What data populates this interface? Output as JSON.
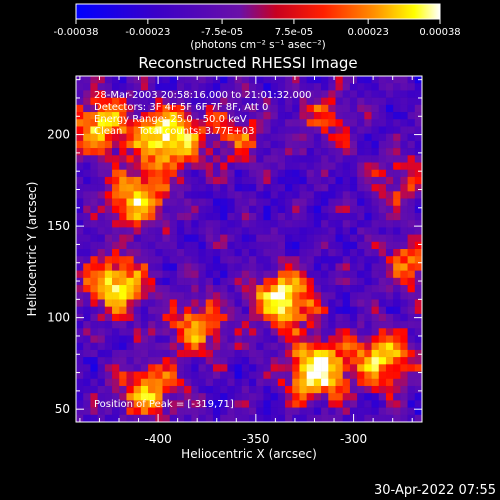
{
  "colorbar": {
    "min": -0.00038,
    "max": 0.00038,
    "ticks": [
      {
        "value": -0.00038,
        "label": "-0.00038"
      },
      {
        "value": -0.00023,
        "label": "-0.00023"
      },
      {
        "value": -7.5e-05,
        "label": "-7.5e-05"
      },
      {
        "value": 7.5e-05,
        "label": "7.5e-05"
      },
      {
        "value": 0.00023,
        "label": "0.00023"
      },
      {
        "value": 0.00038,
        "label": "0.00038"
      }
    ],
    "units_label": "(photons cm⁻² s⁻¹ asec⁻²)",
    "colors": [
      "#0000ff",
      "#3a00c8",
      "#6a10a8",
      "#ff0000",
      "#ff8800",
      "#ffff00",
      "#ffffff"
    ]
  },
  "chart_data": {
    "type": "heatmap",
    "title": "Reconstructed RHESSI Image",
    "xlabel": "Heliocentric X (arcsec)",
    "ylabel": "Heliocentric Y (arcsec)",
    "xlim": [
      -442,
      -265
    ],
    "ylim": [
      43,
      232
    ],
    "xticks": [
      -400,
      -350,
      -300
    ],
    "yticks": [
      50,
      100,
      150,
      200
    ],
    "annotations": [
      "28-Mar-2003 20:58:16.000 to 21:01:32.000",
      "Detectors: 3F 4F 5F 6F 7F 8F, Att 0",
      "Energy Range: 25.0 - 50.0 keV",
      "Clean     Total counts: 3.77E+03"
    ],
    "peak_label": "Position of Peak = [-319,71]",
    "peak": [
      -319,
      71
    ],
    "hotspots": [
      {
        "x": -395,
        "y": 198,
        "level": 1.0
      },
      {
        "x": -430,
        "y": 205,
        "level": 0.75
      },
      {
        "x": -410,
        "y": 165,
        "level": 0.8
      },
      {
        "x": -422,
        "y": 118,
        "level": 0.85
      },
      {
        "x": -405,
        "y": 60,
        "level": 0.7
      },
      {
        "x": -380,
        "y": 95,
        "level": 0.6
      },
      {
        "x": -336,
        "y": 110,
        "level": 0.95
      },
      {
        "x": -319,
        "y": 71,
        "level": 1.0
      },
      {
        "x": -285,
        "y": 78,
        "level": 0.75
      },
      {
        "x": -270,
        "y": 130,
        "level": 0.5
      },
      {
        "x": -360,
        "y": 200,
        "level": 0.45
      },
      {
        "x": -315,
        "y": 208,
        "level": 0.35
      },
      {
        "x": -275,
        "y": 175,
        "level": 0.4
      }
    ]
  },
  "timestamp": "30-Apr-2022 07:55"
}
